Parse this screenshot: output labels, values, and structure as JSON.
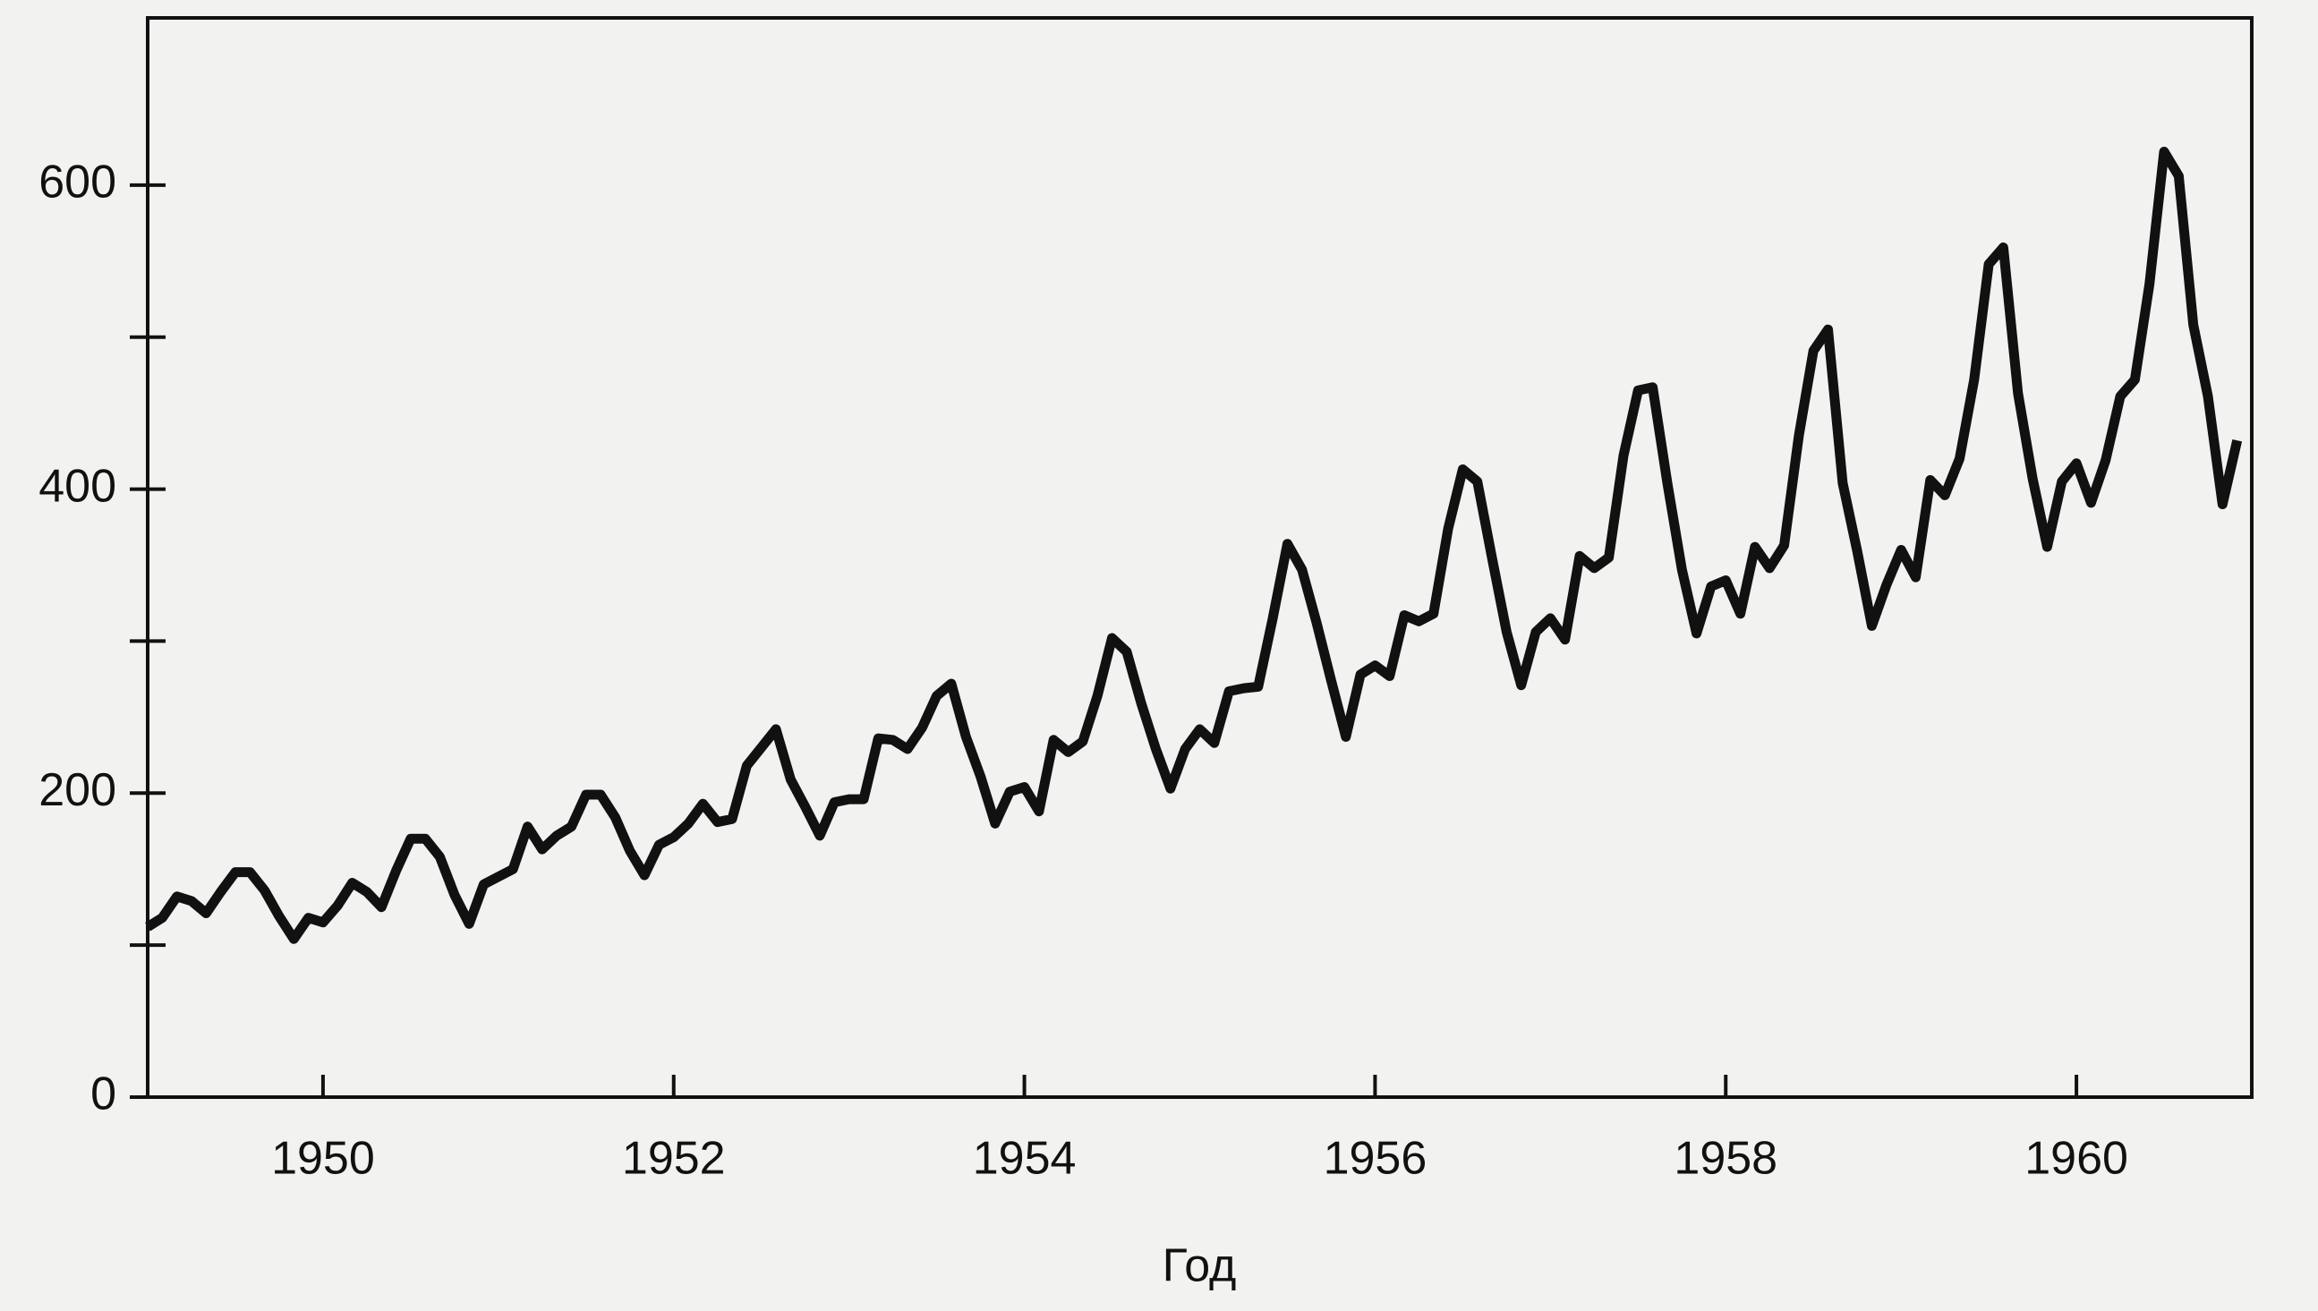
{
  "chart_data": {
    "type": "line",
    "xlabel": "Год",
    "color": "#111111",
    "x": [
      1949,
      1949.0833,
      1949.1667,
      1949.25,
      1949.3333,
      1949.4167,
      1949.5,
      1949.5833,
      1949.6667,
      1949.75,
      1949.8333,
      1949.9167,
      1950,
      1950.0833,
      1950.1667,
      1950.25,
      1950.3333,
      1950.4167,
      1950.5,
      1950.5833,
      1950.6667,
      1950.75,
      1950.8333,
      1950.9167,
      1951,
      1951.0833,
      1951.1667,
      1951.25,
      1951.3333,
      1951.4167,
      1951.5,
      1951.5833,
      1951.6667,
      1951.75,
      1951.8333,
      1951.9167,
      1952,
      1952.0833,
      1952.1667,
      1952.25,
      1952.3333,
      1952.4167,
      1952.5,
      1952.5833,
      1952.6667,
      1952.75,
      1952.8333,
      1952.9167,
      1953,
      1953.0833,
      1953.1667,
      1953.25,
      1953.3333,
      1953.4167,
      1953.5,
      1953.5833,
      1953.6667,
      1953.75,
      1953.8333,
      1953.9167,
      1954,
      1954.0833,
      1954.1667,
      1954.25,
      1954.3333,
      1954.4167,
      1954.5,
      1954.5833,
      1954.6667,
      1954.75,
      1954.8333,
      1954.9167,
      1955,
      1955.0833,
      1955.1667,
      1955.25,
      1955.3333,
      1955.4167,
      1955.5,
      1955.5833,
      1955.6667,
      1955.75,
      1955.8333,
      1955.9167,
      1956,
      1956.0833,
      1956.1667,
      1956.25,
      1956.3333,
      1956.4167,
      1956.5,
      1956.5833,
      1956.6667,
      1956.75,
      1956.8333,
      1956.9167,
      1957,
      1957.0833,
      1957.1667,
      1957.25,
      1957.3333,
      1957.4167,
      1957.5,
      1957.5833,
      1957.6667,
      1957.75,
      1957.8333,
      1957.9167,
      1958,
      1958.0833,
      1958.1667,
      1958.25,
      1958.3333,
      1958.4167,
      1958.5,
      1958.5833,
      1958.6667,
      1958.75,
      1958.8333,
      1958.9167,
      1959,
      1959.0833,
      1959.1667,
      1959.25,
      1959.3333,
      1959.4167,
      1959.5,
      1959.5833,
      1959.6667,
      1959.75,
      1959.8333,
      1959.9167,
      1960,
      1960.0833,
      1960.1667,
      1960.25,
      1960.3333,
      1960.4167,
      1960.5,
      1960.5833,
      1960.6667,
      1960.75,
      1960.8333,
      1960.9167
    ],
    "values": [
      112,
      118,
      132,
      129,
      121,
      135,
      148,
      148,
      136,
      119,
      104,
      118,
      115,
      126,
      141,
      135,
      125,
      149,
      170,
      170,
      158,
      133,
      114,
      140,
      145,
      150,
      178,
      163,
      172,
      178,
      199,
      199,
      184,
      162,
      146,
      166,
      171,
      180,
      193,
      181,
      183,
      218,
      230,
      242,
      209,
      191,
      172,
      194,
      196,
      196,
      236,
      235,
      229,
      243,
      264,
      272,
      237,
      211,
      180,
      201,
      204,
      188,
      235,
      227,
      234,
      264,
      302,
      293,
      259,
      229,
      203,
      229,
      242,
      233,
      267,
      269,
      270,
      315,
      364,
      347,
      312,
      274,
      237,
      278,
      284,
      277,
      317,
      313,
      318,
      374,
      413,
      405,
      355,
      306,
      271,
      306,
      315,
      301,
      356,
      348,
      355,
      422,
      465,
      467,
      404,
      347,
      305,
      336,
      340,
      318,
      362,
      348,
      363,
      435,
      491,
      505,
      404,
      359,
      310,
      337,
      360,
      342,
      406,
      396,
      420,
      472,
      548,
      559,
      463,
      407,
      362,
      405,
      417,
      391,
      419,
      461,
      472,
      535,
      622,
      606,
      508,
      461,
      390,
      432
    ],
    "xlim": [
      1949,
      1961
    ],
    "xticks": [
      1950,
      1952,
      1954,
      1956,
      1958,
      1960
    ],
    "ylim": [
      0,
      710
    ],
    "yticks": [
      0,
      200,
      400,
      600
    ],
    "yminorticks": [
      100,
      300,
      500
    ]
  }
}
